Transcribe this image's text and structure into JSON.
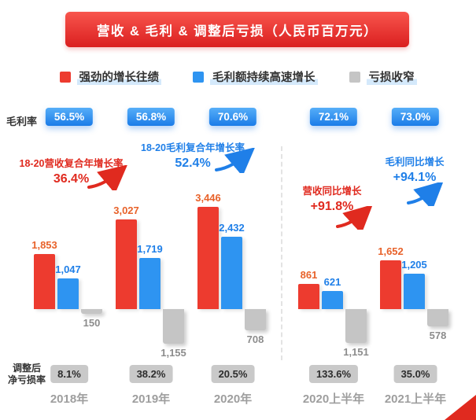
{
  "header": {
    "title": "营收 & 毛利 & 调整后亏损（人民币百万元）"
  },
  "legend": [
    {
      "key": "revenue",
      "label": "强劲的增长往绩",
      "color": "#ed3b2f"
    },
    {
      "key": "gross_profit",
      "label": "毛利额持续高速增长",
      "color": "#2e94f1"
    },
    {
      "key": "loss_narrowing",
      "label": "亏损收窄",
      "color": "#c5c5c5"
    }
  ],
  "rows": {
    "margin_label": "毛利率",
    "loss_label_line1": "调整后",
    "loss_label_line2": "净亏损率"
  },
  "chart_data": {
    "type": "bar",
    "title": "营收 & 毛利 & 调整后亏损",
    "unit": "人民币百万元",
    "categories": [
      "2018年",
      "2019年",
      "2020年",
      "2020上半年",
      "2021上半年"
    ],
    "series": [
      {
        "key": "revenue",
        "name": "营收",
        "color": "#ed3b2f",
        "label_color": "#e8622a",
        "values": [
          1853,
          3027,
          3446,
          861,
          1652
        ],
        "labels": [
          "1,853",
          "3,027",
          "3,446",
          "861",
          "1,652"
        ]
      },
      {
        "key": "gross_profit",
        "name": "毛利",
        "color": "#2e94f1",
        "label_color": "#1f7fe8",
        "values": [
          1047,
          1719,
          2432,
          621,
          1205
        ],
        "labels": [
          "1,047",
          "1,719",
          "2,432",
          "621",
          "1,205"
        ]
      },
      {
        "key": "adjusted_loss",
        "name": "调整后亏损",
        "color": "#c5c5c5",
        "label_color": "#8c8c8c",
        "values": [
          -150,
          -1155,
          -708,
          -1151,
          -578
        ],
        "labels": [
          "150",
          "1,155",
          "708",
          "1,151",
          "578"
        ]
      }
    ],
    "margin_rates": [
      "56.5%",
      "56.8%",
      "70.6%",
      "72.1%",
      "73.0%"
    ],
    "adjusted_net_loss_rates": [
      "8.1%",
      "38.2%",
      "20.5%",
      "133.6%",
      "35.0%"
    ],
    "divider_after_category_index": 2,
    "grid": false,
    "legend_position": "top"
  },
  "annotations": {
    "rev_cagr": {
      "line1": "18-20营收复合年增长率",
      "line2": "36.4%"
    },
    "gp_cagr": {
      "line1": "18-20毛利复合年增长率",
      "line2": "52.4%"
    },
    "rev_yoy": {
      "line1": "营收同比增长",
      "line2": "+91.8%"
    },
    "gp_yoy": {
      "line1": "毛利同比增长",
      "line2": "+94.1%"
    }
  },
  "colors": {
    "accent_red": "#e02a1f",
    "accent_blue": "#1f7fe8",
    "badge_blue": "#1b7ce8",
    "badge_gray": "#c9c9c9",
    "axis_text": "#9e9e9e"
  }
}
